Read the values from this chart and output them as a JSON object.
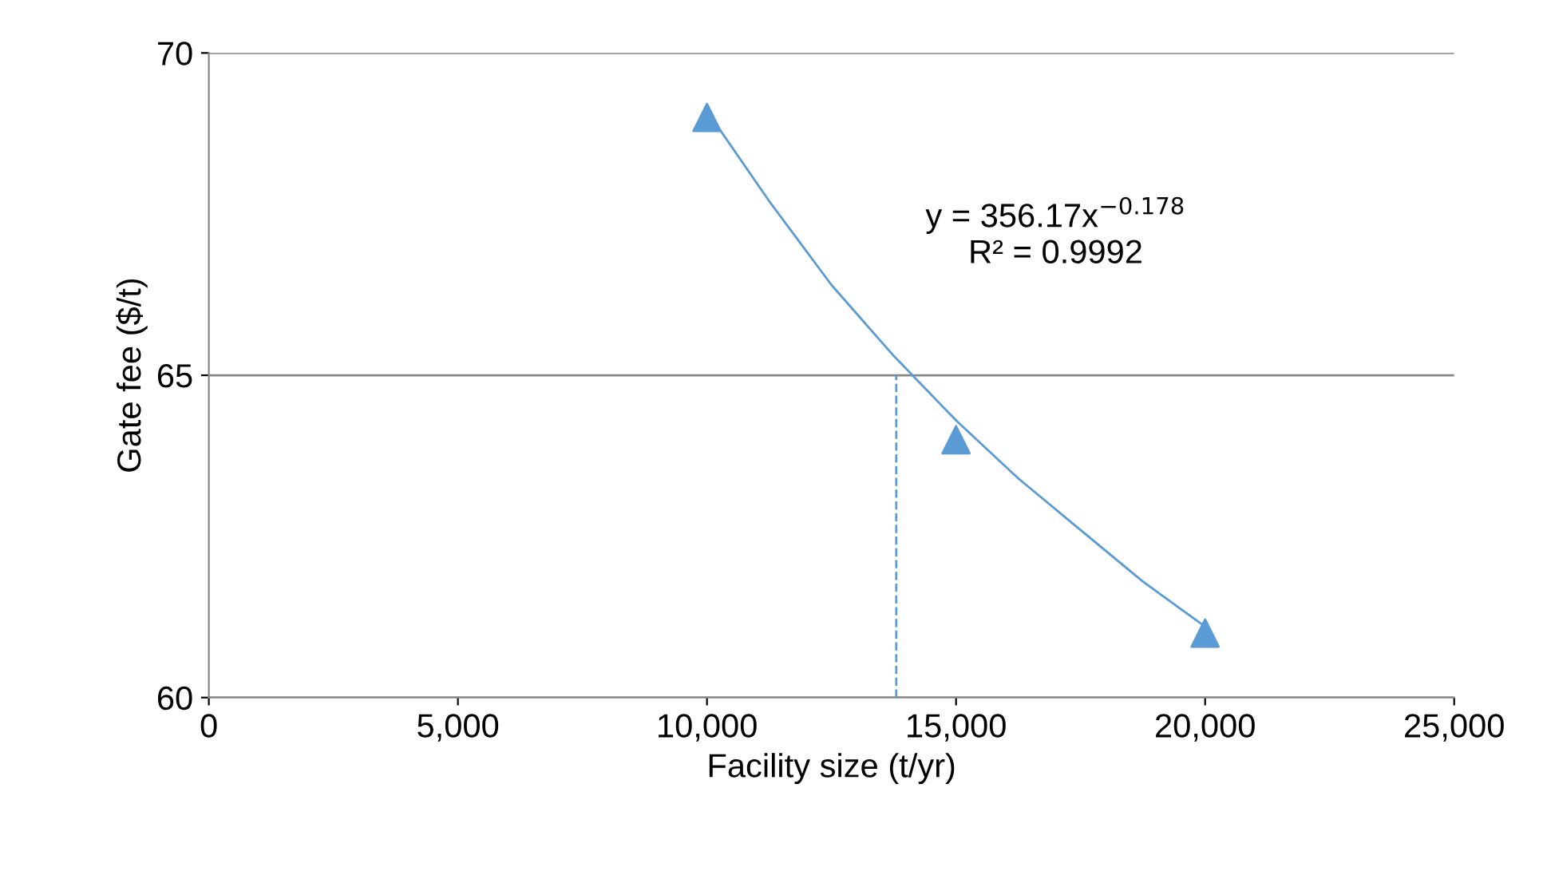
{
  "chart_data": {
    "type": "scatter",
    "xlabel": "Facility size (t/yr)",
    "ylabel": "Gate fee ($/t)",
    "xlim": [
      0,
      25000
    ],
    "xticks": [
      {
        "value": 0,
        "label": "0"
      },
      {
        "value": 5000,
        "label": "5,000"
      },
      {
        "value": 10000,
        "label": "10,000"
      },
      {
        "value": 15000,
        "label": "15,000"
      },
      {
        "value": 20000,
        "label": "20,000"
      },
      {
        "value": 25000,
        "label": "25,000"
      }
    ],
    "ylim": [
      60,
      70
    ],
    "yticks": [
      60,
      65,
      70
    ],
    "grid": "y",
    "marker": "triangle",
    "series": [
      {
        "color": "#5b9bd5",
        "x": [
          10000,
          15000,
          20000
        ],
        "values": [
          69,
          64,
          61
        ]
      },
      {
        "type": "line",
        "color": "#5b9bd5",
        "marker": "none",
        "x": [
          10000,
          11250,
          12500,
          13750,
          15000,
          16250,
          17500,
          18750,
          20000
        ],
        "values": [
          69.1,
          67.7,
          66.4,
          65.3,
          64.3,
          63.4,
          62.6,
          61.8,
          61.1
        ]
      },
      {
        "type": "line",
        "color": "#5b9bd5",
        "marker": "none",
        "line_style": "dashed",
        "x": [
          13800,
          13800
        ],
        "values": [
          60,
          65
        ]
      }
    ],
    "annotations": [
      "y = 356.17x$^{−0.178}$\nR² = 0.9992"
    ]
  }
}
